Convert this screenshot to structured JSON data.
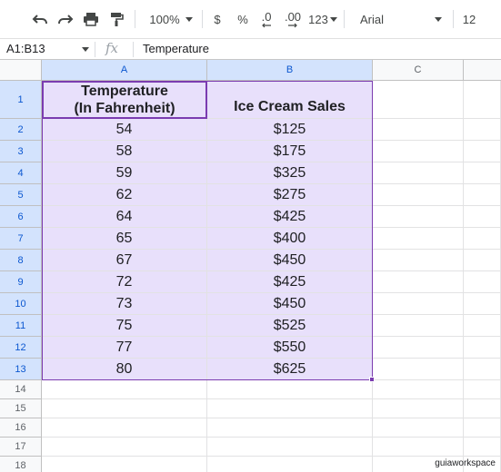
{
  "toolbar": {
    "zoom": "100%",
    "currency": "$",
    "percent": "%",
    "decrease_decimal": ".0",
    "increase_decimal": ".00",
    "more_formats": "123",
    "font": "Arial",
    "font_size": "12"
  },
  "formula_bar": {
    "name_box": "A1:B13",
    "fx": "fx",
    "value": "Temperature"
  },
  "columns": [
    "A",
    "B",
    "C"
  ],
  "rows": [
    "1",
    "2",
    "3",
    "4",
    "5",
    "6",
    "7",
    "8",
    "9",
    "10",
    "11",
    "12",
    "13",
    "14",
    "15",
    "16",
    "17",
    "18"
  ],
  "sheet": {
    "header_a_line1": "Temperature",
    "header_a_line2": "(In Fahrenheit)",
    "header_b": "Ice Cream Sales",
    "temperature": [
      "54",
      "58",
      "59",
      "62",
      "64",
      "65",
      "67",
      "72",
      "73",
      "75",
      "77",
      "80"
    ],
    "sales": [
      "$125",
      "$175",
      "$325",
      "$275",
      "$425",
      "$400",
      "$450",
      "$425",
      "$450",
      "$525",
      "$550",
      "$625"
    ]
  },
  "watermark": "guiaworkspace",
  "colors": {
    "selection_fill": "#e8e0fb",
    "selection_border": "#7b3cb0",
    "header_selected": "#d3e3fd"
  }
}
